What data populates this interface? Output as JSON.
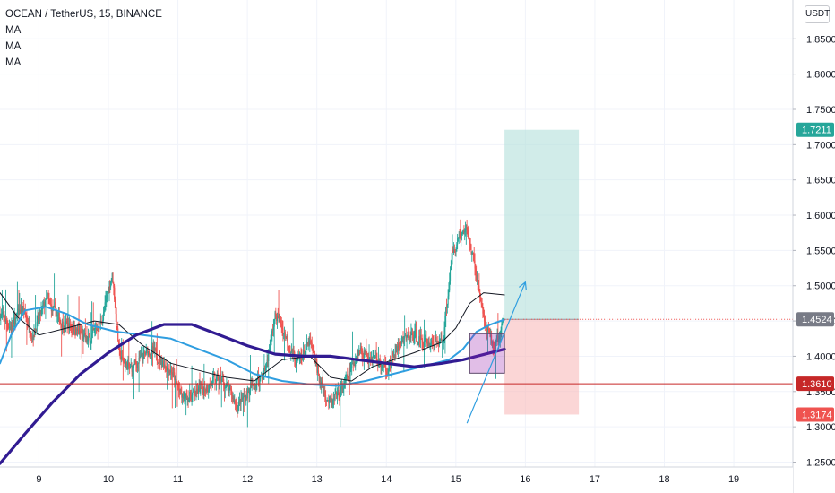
{
  "legend": {
    "symbol": "OCEAN / TetherUS, 15, BINANCE",
    "indicators": [
      "MA",
      "MA",
      "MA"
    ]
  },
  "currency_button": "USDT",
  "colors": {
    "up": "#26a69a",
    "down": "#ef5350",
    "ma_fast": "#131722",
    "ma_mid": "#2f9ee0",
    "ma_slow": "#311b92",
    "target": "#b2dfdb",
    "stop": "#f8bbbb",
    "price_tag": "#787b86",
    "support_line": "#c62828"
  },
  "chart_data": {
    "type": "candlestick",
    "x_ticks": [
      "9",
      "10",
      "11",
      "12",
      "13",
      "14",
      "15",
      "16",
      "17",
      "18",
      "19"
    ],
    "y_ticks": [
      "1.2500",
      "1.3000",
      "1.3500",
      "1.4000",
      "1.4500",
      "1.5000",
      "1.5500",
      "1.6000",
      "1.6500",
      "1.7000",
      "1.7500",
      "1.8000",
      "1.8500"
    ],
    "ylim": [
      1.243,
      1.905
    ],
    "xlim": [
      8.44,
      19.85
    ],
    "candle_range": [
      8.44,
      15.7
    ],
    "seed": 7,
    "price_path": [
      [
        8.44,
        1.46
      ],
      [
        8.6,
        1.44
      ],
      [
        8.75,
        1.47
      ],
      [
        8.9,
        1.43
      ],
      [
        9.1,
        1.48
      ],
      [
        9.3,
        1.45
      ],
      [
        9.5,
        1.44
      ],
      [
        9.7,
        1.42
      ],
      [
        9.9,
        1.45
      ],
      [
        10.05,
        1.52
      ],
      [
        10.15,
        1.4
      ],
      [
        10.3,
        1.38
      ],
      [
        10.6,
        1.41
      ],
      [
        10.9,
        1.38
      ],
      [
        11.05,
        1.34
      ],
      [
        11.3,
        1.35
      ],
      [
        11.6,
        1.37
      ],
      [
        11.85,
        1.33
      ],
      [
        12.1,
        1.36
      ],
      [
        12.25,
        1.38
      ],
      [
        12.4,
        1.46
      ],
      [
        12.5,
        1.44
      ],
      [
        12.7,
        1.39
      ],
      [
        12.9,
        1.42
      ],
      [
        13.05,
        1.36
      ],
      [
        13.2,
        1.33
      ],
      [
        13.4,
        1.36
      ],
      [
        13.6,
        1.41
      ],
      [
        13.8,
        1.4
      ],
      [
        14.0,
        1.38
      ],
      [
        14.2,
        1.42
      ],
      [
        14.4,
        1.43
      ],
      [
        14.55,
        1.42
      ],
      [
        14.8,
        1.42
      ],
      [
        14.95,
        1.55
      ],
      [
        15.05,
        1.57
      ],
      [
        15.15,
        1.58
      ],
      [
        15.3,
        1.51
      ],
      [
        15.42,
        1.44
      ],
      [
        15.55,
        1.41
      ],
      [
        15.7,
        1.452
      ]
    ],
    "series": [
      {
        "name": "MA",
        "line_color": "#131722",
        "points": [
          [
            8.44,
            1.49
          ],
          [
            8.7,
            1.455
          ],
          [
            9.0,
            1.43
          ],
          [
            9.4,
            1.44
          ],
          [
            9.8,
            1.45
          ],
          [
            10.15,
            1.445
          ],
          [
            10.5,
            1.415
          ],
          [
            10.9,
            1.39
          ],
          [
            11.3,
            1.38
          ],
          [
            11.7,
            1.37
          ],
          [
            12.1,
            1.365
          ],
          [
            12.5,
            1.395
          ],
          [
            12.9,
            1.4
          ],
          [
            13.2,
            1.37
          ],
          [
            13.5,
            1.365
          ],
          [
            13.8,
            1.385
          ],
          [
            14.1,
            1.395
          ],
          [
            14.4,
            1.405
          ],
          [
            14.8,
            1.42
          ],
          [
            15.0,
            1.44
          ],
          [
            15.2,
            1.475
          ],
          [
            15.4,
            1.49
          ],
          [
            15.7,
            1.487
          ]
        ]
      },
      {
        "name": "MA",
        "line_color": "#2f9ee0",
        "points": [
          [
            8.44,
            1.39
          ],
          [
            8.6,
            1.43
          ],
          [
            8.8,
            1.465
          ],
          [
            9.1,
            1.47
          ],
          [
            9.4,
            1.46
          ],
          [
            9.7,
            1.445
          ],
          [
            10.1,
            1.435
          ],
          [
            10.5,
            1.43
          ],
          [
            10.9,
            1.425
          ],
          [
            11.3,
            1.41
          ],
          [
            11.7,
            1.395
          ],
          [
            12.1,
            1.375
          ],
          [
            12.5,
            1.365
          ],
          [
            12.9,
            1.36
          ],
          [
            13.3,
            1.358
          ],
          [
            13.7,
            1.365
          ],
          [
            14.1,
            1.375
          ],
          [
            14.5,
            1.385
          ],
          [
            14.9,
            1.395
          ],
          [
            15.1,
            1.41
          ],
          [
            15.3,
            1.435
          ],
          [
            15.5,
            1.445
          ],
          [
            15.7,
            1.452
          ]
        ]
      },
      {
        "name": "MA",
        "line_color": "#311b92",
        "points": [
          [
            8.44,
            1.248
          ],
          [
            8.8,
            1.29
          ],
          [
            9.2,
            1.335
          ],
          [
            9.6,
            1.375
          ],
          [
            10.0,
            1.405
          ],
          [
            10.4,
            1.43
          ],
          [
            10.8,
            1.445
          ],
          [
            11.2,
            1.445
          ],
          [
            11.6,
            1.43
          ],
          [
            12.0,
            1.415
          ],
          [
            12.4,
            1.403
          ],
          [
            12.8,
            1.4
          ],
          [
            13.2,
            1.4
          ],
          [
            13.6,
            1.395
          ],
          [
            14.0,
            1.39
          ],
          [
            14.4,
            1.385
          ],
          [
            14.8,
            1.39
          ],
          [
            15.1,
            1.395
          ],
          [
            15.3,
            1.4
          ],
          [
            15.7,
            1.41
          ]
        ]
      }
    ],
    "position": {
      "start_x": 15.7,
      "end_x": 16.77,
      "entry": 1.4524,
      "target": 1.7211,
      "stop": 1.3174,
      "zone_top": 1.432,
      "zone_bottom": 1.376,
      "zone_x": [
        15.2,
        15.7
      ]
    },
    "horizontal_line": 1.361,
    "arrow": {
      "from": [
        15.16,
        1.305
      ],
      "to": [
        16.0,
        1.505
      ]
    },
    "price_tags": [
      {
        "label": "1.7211",
        "value": 1.7211,
        "color": "#26a69a"
      },
      {
        "label": "1.4524",
        "value": 1.4524,
        "color": "#787b86"
      },
      {
        "label": "1.3610",
        "value": 1.361,
        "color": "#c62828"
      },
      {
        "label": "1.3174",
        "value": 1.3174,
        "color": "#ef5350"
      }
    ]
  }
}
